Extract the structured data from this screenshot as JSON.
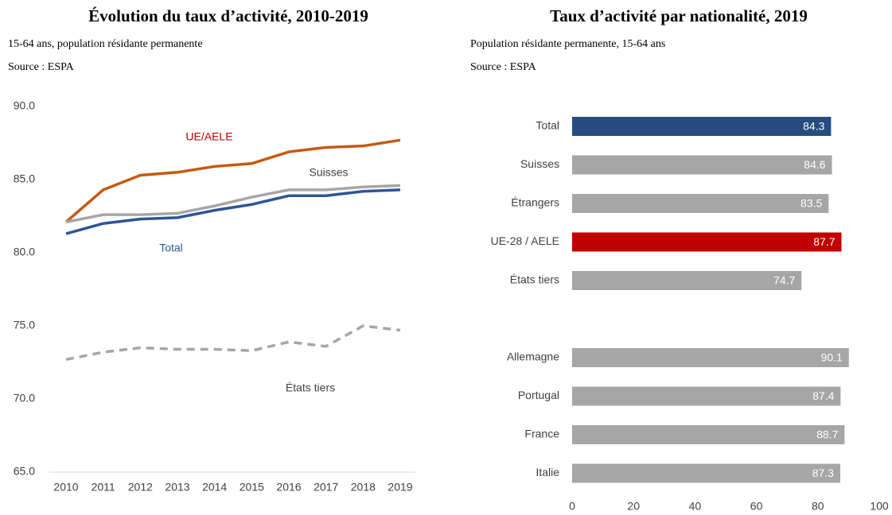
{
  "chart_data": [
    {
      "type": "line",
      "title": "Évolution du taux d’activité, 2010-2019",
      "subtitle": "15-64 ans, population résidante permanente",
      "source": "Source : ESPA",
      "x": [
        2010,
        2011,
        2012,
        2013,
        2014,
        2015,
        2016,
        2017,
        2018,
        2019
      ],
      "xticks": [
        2010,
        2011,
        2012,
        2013,
        2014,
        2015,
        2016,
        2017,
        2018,
        2019
      ],
      "ylim": [
        65,
        90
      ],
      "yticks": [
        {
          "value": 65,
          "label": "65.0"
        },
        {
          "value": 70,
          "label": "70.0"
        },
        {
          "value": 75,
          "label": "75.0"
        },
        {
          "value": 80,
          "label": "80.0"
        },
        {
          "value": 85,
          "label": "85.0"
        },
        {
          "value": 90,
          "label": "90.0"
        }
      ],
      "grid": false,
      "series": [
        {
          "name": "UE/AELE",
          "color": "#c55a11",
          "values": [
            82.1,
            84.3,
            85.3,
            85.5,
            85.9,
            86.1,
            86.9,
            87.2,
            87.3,
            87.7
          ]
        },
        {
          "name": "Suisses",
          "color": "#a6a6a6",
          "values": [
            82.1,
            82.6,
            82.6,
            82.7,
            83.2,
            83.8,
            84.3,
            84.3,
            84.5,
            84.6
          ]
        },
        {
          "name": "Total",
          "color": "#2f5597",
          "values": [
            81.3,
            82.0,
            82.3,
            82.4,
            82.9,
            83.3,
            83.9,
            83.9,
            84.2,
            84.3
          ]
        },
        {
          "name": "États tiers",
          "color": "#a6a6a6",
          "dashed": true,
          "values": [
            72.7,
            73.2,
            73.5,
            73.4,
            73.4,
            73.3,
            73.9,
            73.6,
            75.0,
            74.7
          ]
        }
      ]
    },
    {
      "type": "barh",
      "title": "Taux d’activité par nationalité, 2019",
      "subtitle": "Population résidante permanente, 15-64 ans",
      "source": "Source : ESPA",
      "categories": [
        "Total",
        "Suisses",
        "Étrangers",
        "UE-28 / AELE",
        "États tiers",
        null,
        "Allemagne",
        "Portugal",
        "France",
        "Italie"
      ],
      "values": [
        84.3,
        84.6,
        83.5,
        87.7,
        74.7,
        null,
        90.1,
        87.4,
        88.7,
        87.3
      ],
      "colors": [
        "#264b7e",
        "#a6a6a6",
        "#a6a6a6",
        "#c00000",
        "#a6a6a6",
        null,
        "#a6a6a6",
        "#a6a6a6",
        "#a6a6a6",
        "#a6a6a6"
      ],
      "xlim": [
        0,
        100
      ],
      "xticks": [
        0,
        20,
        40,
        60,
        80,
        100
      ]
    }
  ]
}
